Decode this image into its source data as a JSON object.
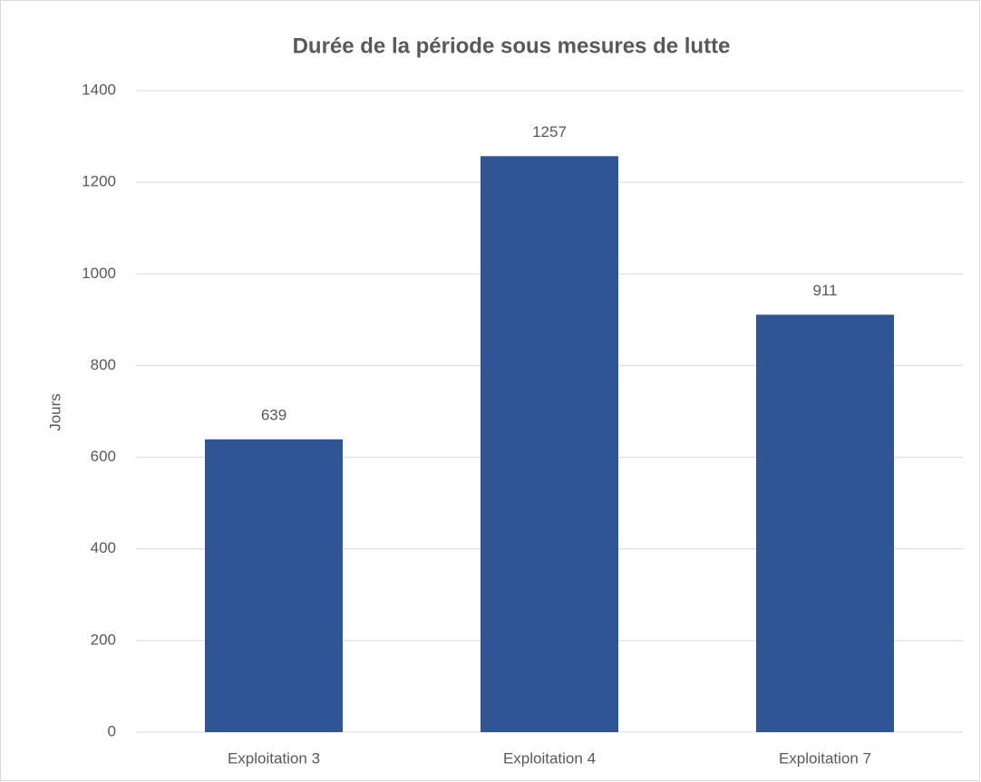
{
  "chart_data": {
    "type": "bar",
    "title": "Durée de la période sous mesures de lutte",
    "y_label": "Jours",
    "categories": [
      "Exploitation 3",
      "Exploitation 4",
      "Exploitation 7"
    ],
    "values": [
      639,
      1257,
      911
    ],
    "color": "#2f5597",
    "ylim": [
      0,
      1400
    ],
    "yticks": [
      0,
      200,
      400,
      600,
      800,
      1000,
      1200,
      1400
    ],
    "grid": true
  }
}
